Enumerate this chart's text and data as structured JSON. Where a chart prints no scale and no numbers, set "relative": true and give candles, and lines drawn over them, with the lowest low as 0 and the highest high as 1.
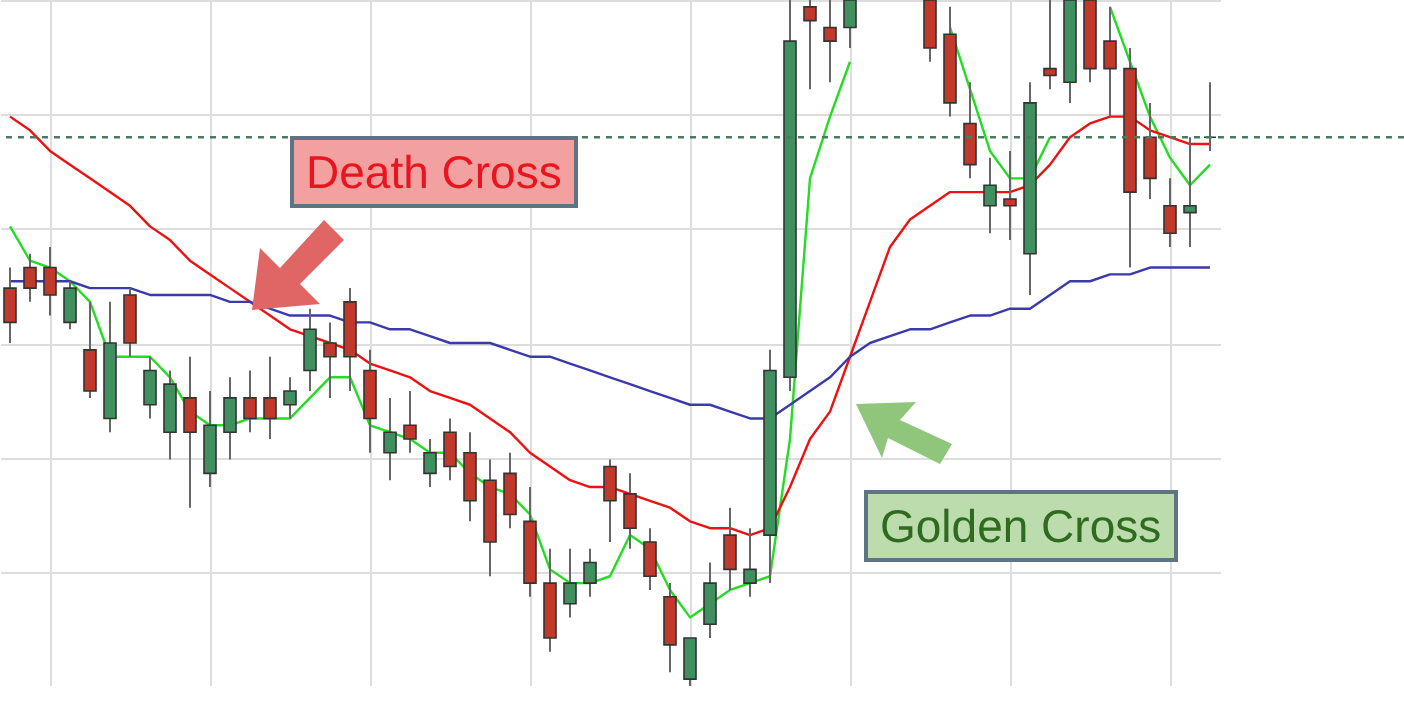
{
  "chart_data": {
    "type": "candlestick",
    "relative": true,
    "grid": true,
    "categories": [
      null,
      null,
      null,
      null,
      null,
      null,
      null,
      null,
      null,
      null,
      null,
      null,
      null,
      null,
      null,
      null,
      null,
      null,
      null,
      null,
      null,
      null,
      null,
      null,
      null,
      null,
      null,
      null,
      null,
      null,
      null,
      null,
      null,
      null,
      null,
      null,
      null,
      null,
      null,
      null,
      null,
      null,
      null,
      null,
      null,
      null,
      null,
      null,
      null,
      null,
      null,
      null,
      null,
      null,
      null,
      null,
      null,
      null,
      null,
      null,
      null
    ],
    "ohlc": [
      [
        0.58,
        0.61,
        0.5,
        0.53
      ],
      [
        0.61,
        0.63,
        0.56,
        0.58
      ],
      [
        0.61,
        0.64,
        0.54,
        0.57
      ],
      [
        0.53,
        0.59,
        0.52,
        0.58
      ],
      [
        0.49,
        0.56,
        0.42,
        0.43
      ],
      [
        0.39,
        0.56,
        0.37,
        0.5
      ],
      [
        0.57,
        0.58,
        0.48,
        0.5
      ],
      [
        0.41,
        0.48,
        0.39,
        0.46
      ],
      [
        0.37,
        0.46,
        0.33,
        0.44
      ],
      [
        0.42,
        0.48,
        0.26,
        0.37
      ],
      [
        0.31,
        0.43,
        0.29,
        0.38
      ],
      [
        0.37,
        0.45,
        0.33,
        0.42
      ],
      [
        0.42,
        0.46,
        0.37,
        0.39
      ],
      [
        0.42,
        0.48,
        0.36,
        0.39
      ],
      [
        0.41,
        0.45,
        0.39,
        0.43
      ],
      [
        0.46,
        0.55,
        0.43,
        0.52
      ],
      [
        0.5,
        0.53,
        0.42,
        0.48
      ],
      [
        0.56,
        0.58,
        0.43,
        0.48
      ],
      [
        0.46,
        0.49,
        0.34,
        0.39
      ],
      [
        0.34,
        0.42,
        0.3,
        0.37
      ],
      [
        0.38,
        0.43,
        0.34,
        0.36
      ],
      [
        0.31,
        0.36,
        0.29,
        0.34
      ],
      [
        0.37,
        0.39,
        0.3,
        0.32
      ],
      [
        0.34,
        0.37,
        0.24,
        0.27
      ],
      [
        0.3,
        0.33,
        0.16,
        0.21
      ],
      [
        0.31,
        0.34,
        0.23,
        0.25
      ],
      [
        0.24,
        0.29,
        0.13,
        0.15
      ],
      [
        0.15,
        0.2,
        0.05,
        0.07
      ],
      [
        0.12,
        0.2,
        0.1,
        0.15
      ],
      [
        0.15,
        0.2,
        0.13,
        0.18
      ],
      [
        0.32,
        0.33,
        0.21,
        0.27
      ],
      [
        0.28,
        0.31,
        0.2,
        0.23
      ],
      [
        0.21,
        0.23,
        0.14,
        0.16
      ],
      [
        0.13,
        0.15,
        0.02,
        0.06
      ],
      [
        0.01,
        0.07,
        0,
        0.07
      ],
      [
        0.09,
        0.18,
        0.07,
        0.15
      ],
      [
        0.22,
        0.26,
        0.14,
        0.17
      ],
      [
        0.15,
        0.23,
        0.13,
        0.17
      ],
      [
        0.22,
        0.49,
        0.15,
        0.46
      ],
      [
        0.45,
        1,
        0.43,
        0.94
      ],
      [
        0.99,
        1,
        0.87,
        0.97
      ],
      [
        0.96,
        1,
        0.88,
        0.94
      ],
      [
        0.96,
        1,
        0.93,
        1
      ],
      null,
      null,
      null,
      [
        1,
        1,
        0.91,
        0.93
      ],
      [
        0.95,
        0.99,
        0.83,
        0.85
      ],
      [
        0.82,
        0.88,
        0.74,
        0.76
      ],
      [
        0.7,
        0.77,
        0.66,
        0.73
      ],
      [
        0.71,
        0.78,
        0.65,
        0.7
      ],
      [
        0.63,
        0.88,
        0.57,
        0.85
      ],
      [
        0.9,
        1,
        0.87,
        0.89
      ],
      [
        0.88,
        1,
        0.85,
        1
      ],
      [
        1,
        1,
        0.88,
        0.9
      ],
      [
        0.94,
        0.99,
        0.83,
        0.9
      ],
      [
        0.9,
        0.93,
        0.61,
        0.72
      ],
      [
        0.8,
        0.85,
        0.71,
        0.74
      ],
      [
        0.7,
        0.74,
        0.64,
        0.66
      ],
      [
        0.69,
        0.8,
        0.64,
        0.7
      ],
      [
        0.8,
        0.88,
        0.78,
        0.8
      ]
    ],
    "series": [
      {
        "type": "line",
        "color": "#22dd22",
        "values": [
          0.67,
          0.62,
          0.61,
          0.59,
          0.56,
          0.48,
          0.48,
          0.48,
          0.45,
          0.4,
          0.38,
          0.38,
          0.39,
          0.39,
          0.39,
          0.42,
          0.45,
          0.45,
          0.38,
          0.37,
          0.36,
          0.34,
          0.34,
          0.31,
          0.29,
          0.28,
          0.25,
          0.17,
          0.15,
          0.15,
          0.16,
          0.22,
          0.2,
          0.14,
          0.1,
          0.12,
          0.14,
          0.15,
          0.16,
          0.36,
          0.74,
          0.83,
          0.91,
          null,
          null,
          null,
          null,
          0.96,
          0.87,
          0.78,
          0.74,
          0.74,
          0.8,
          null,
          null,
          0.99,
          0.91,
          0.83,
          0.77,
          0.73,
          0.76
        ]
      },
      {
        "type": "line",
        "color": "#ee1111",
        "values": [
          0.83,
          0.81,
          0.78,
          0.76,
          0.74,
          0.72,
          0.7,
          0.67,
          0.65,
          0.62,
          0.6,
          0.58,
          0.56,
          0.54,
          0.52,
          0.51,
          0.5,
          0.49,
          0.47,
          0.46,
          0.45,
          0.43,
          0.42,
          0.41,
          0.39,
          0.37,
          0.34,
          0.32,
          0.3,
          0.29,
          0.29,
          0.28,
          0.27,
          0.26,
          0.24,
          0.23,
          0.23,
          0.22,
          0.23,
          0.29,
          0.36,
          0.4,
          0.48,
          0.56,
          0.64,
          0.68,
          0.7,
          0.72,
          0.72,
          0.72,
          0.72,
          0.73,
          0.76,
          0.8,
          0.82,
          0.83,
          0.83,
          0.81,
          0.8,
          0.79,
          0.79
        ]
      },
      {
        "type": "line",
        "color": "#3a3aaa",
        "values": [
          0.59,
          0.59,
          0.59,
          0.59,
          0.58,
          0.58,
          0.58,
          0.57,
          0.57,
          0.57,
          0.57,
          0.56,
          0.56,
          0.55,
          0.54,
          0.54,
          0.54,
          0.53,
          0.53,
          0.52,
          0.52,
          0.51,
          0.5,
          0.5,
          0.5,
          0.49,
          0.48,
          0.48,
          0.47,
          0.46,
          0.45,
          0.44,
          0.43,
          0.42,
          0.41,
          0.41,
          0.4,
          0.39,
          0.39,
          0.41,
          0.43,
          0.45,
          0.48,
          0.5,
          0.51,
          0.52,
          0.52,
          0.53,
          0.54,
          0.54,
          0.55,
          0.55,
          0.57,
          0.59,
          0.59,
          0.6,
          0.6,
          0.61,
          0.61,
          0.61,
          0.61
        ]
      }
    ],
    "ref_lines": [
      {
        "axis": "y",
        "value": 0.8,
        "color": "#4a7a60",
        "line_style": "dashed"
      }
    ],
    "annotations": [
      "Death Cross",
      "Golden Cross"
    ]
  }
}
